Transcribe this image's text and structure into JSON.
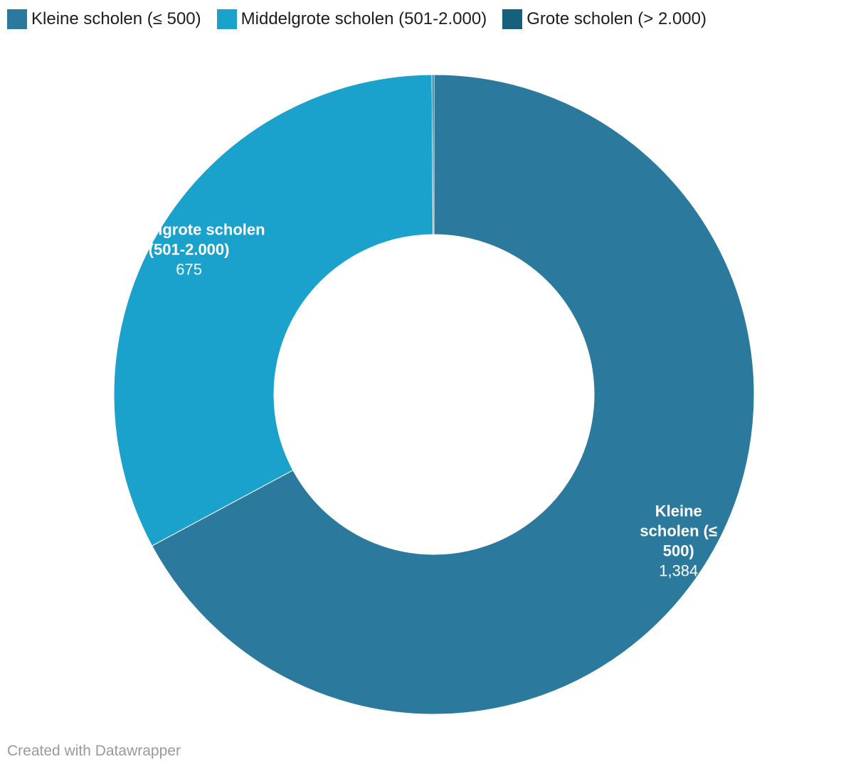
{
  "chart_data": {
    "type": "pie",
    "variant": "donut",
    "categories": [
      "Kleine scholen (≤ 500)",
      "Middelgrote scholen (501-2.000)",
      "Grote scholen (> 2.000)"
    ],
    "values": [
      1384,
      675,
      2
    ],
    "value_labels": [
      "1,384",
      "675",
      ""
    ],
    "label_lines": [
      [
        "Kleine",
        "scholen (≤",
        "500)"
      ],
      [
        "Middelgrote scholen",
        "(501-2.000)"
      ],
      []
    ],
    "colors": [
      "#2b7a9e",
      "#1aa1cc",
      "#17607c"
    ],
    "legend_placement": "top-left"
  },
  "footer": {
    "credit": "Created with Datawrapper"
  }
}
